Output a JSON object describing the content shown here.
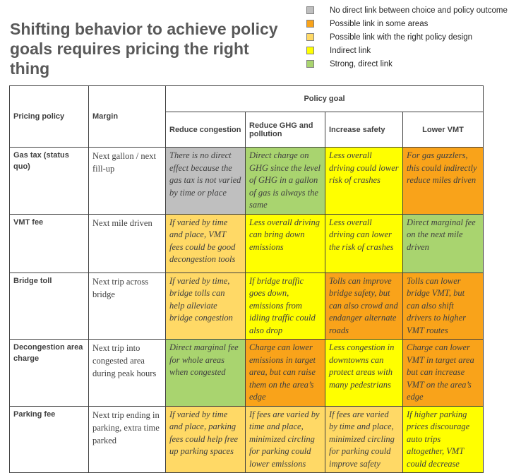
{
  "title": "Shifting behavior to achieve policy goals requires pricing the right thing",
  "legend": [
    {
      "label": "No direct link between choice and policy outcome",
      "color": "#bfbfbf",
      "key": "gray"
    },
    {
      "label": "Possible link in some areas",
      "color": "#f9a31a",
      "key": "orange"
    },
    {
      "label": "Possible link with the right policy design",
      "color": "#ffd966",
      "key": "lightorange"
    },
    {
      "label": "Indirect link",
      "color": "#ffff00",
      "key": "yellow"
    },
    {
      "label": "Strong, direct link",
      "color": "#a9d46f",
      "key": "green"
    }
  ],
  "table": {
    "header": {
      "pricing_policy": "Pricing policy",
      "margin": "Margin",
      "policy_goal": "Policy goal",
      "goals": [
        "Reduce congestion",
        "Reduce GHG  and pollution",
        "Increase safety",
        "Lower VMT"
      ]
    },
    "rows": [
      {
        "policy": "Gas tax (status quo)",
        "margin": "Next gallon / next fill-up",
        "cells": [
          {
            "text": "There is no direct effect because the gas tax is not varied by time or place",
            "color": "gray"
          },
          {
            "text": "Direct charge on GHG since the level of GHG in a gallon of gas is always the same",
            "color": "green"
          },
          {
            "text": "Less overall driving could lower risk of crashes",
            "color": "yellow"
          },
          {
            "text": "For gas guzzlers, this could indirectly reduce miles driven",
            "color": "orange"
          }
        ]
      },
      {
        "policy": "VMT fee",
        "margin": "Next mile driven",
        "cells": [
          {
            "text": "If varied by time and place, VMT fees could be good decongestion tools",
            "color": "lightorange"
          },
          {
            "text": "Less overall driving can bring down emissions",
            "color": "yellow"
          },
          {
            "text": "Less overall driving can lower the risk of crashes",
            "color": "yellow"
          },
          {
            "text": "Direct marginal fee on the next mile driven",
            "color": "green"
          }
        ]
      },
      {
        "policy": "Bridge toll",
        "margin": "Next trip across bridge",
        "cells": [
          {
            "text": "If varied by time, bridge tolls can help alleviate bridge congestion",
            "color": "lightorange"
          },
          {
            "text": "If bridge traffic goes down, emissions from idling traffic could also drop",
            "color": "yellow"
          },
          {
            "text": "Tolls can improve bridge safety, but can also crowd and endanger alternate roads",
            "color": "orange"
          },
          {
            "text": "Tolls can lower bridge VMT, but can also shift drivers to higher VMT routes",
            "color": "orange"
          }
        ]
      },
      {
        "policy": "Decongestion area charge",
        "margin": "Next trip into congested area during peak hours",
        "cells": [
          {
            "text": "Direct marginal fee for whole areas when congested",
            "color": "green"
          },
          {
            "text": "Charge can lower emissions in target area, but can raise them on the area’s edge",
            "color": "orange"
          },
          {
            "text": "Less congestion in downtowns can protect areas with many pedestrians",
            "color": "yellow"
          },
          {
            "text": "Charge can lower VMT in target area but can increase VMT on the area’s edge",
            "color": "orange"
          }
        ]
      },
      {
        "policy": "Parking fee",
        "margin": "Next trip ending in parking, extra time parked",
        "cells": [
          {
            "text": "If varied by time and place, parking fees could help free up parking spaces",
            "color": "lightorange"
          },
          {
            "text": " If fees are varied by time and place, minimized circling for parking could lower emissions",
            "color": "lightorange"
          },
          {
            "text": "If fees are varied by time and place, minimized circling for parking could improve safety",
            "color": "lightorange"
          },
          {
            "text": "If higher parking prices discourage auto trips altogether, VMT could decrease",
            "color": "yellow"
          }
        ]
      }
    ]
  }
}
